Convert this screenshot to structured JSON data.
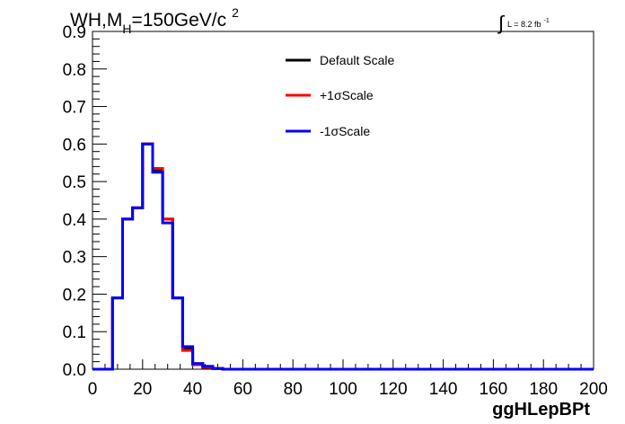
{
  "chart_data": {
    "type": "line",
    "title_parts": {
      "a": "WH,M",
      "sub": "H",
      "b": "=150GeV/c",
      "sup": "2"
    },
    "lumi": {
      "integral": "∫",
      "text": "L = 8.2 fb",
      "sup": "-1"
    },
    "xlabel": "ggHLepBPt",
    "ylabel": "",
    "xlim": [
      0,
      200
    ],
    "ylim": [
      0,
      0.9
    ],
    "x_ticks": [
      "0",
      "20",
      "40",
      "60",
      "80",
      "100",
      "120",
      "140",
      "160",
      "180",
      "200"
    ],
    "y_ticks": [
      "0.0",
      "0.1",
      "0.2",
      "0.3",
      "0.4",
      "0.5",
      "0.6",
      "0.7",
      "0.8",
      "0.9"
    ],
    "bin_edges": [
      0,
      4,
      8,
      12,
      16,
      20,
      24,
      28,
      32,
      36,
      40,
      44,
      48,
      52,
      200
    ],
    "series": [
      {
        "name": "Default Scale",
        "color": "#000000",
        "values": [
          0,
          0,
          0.19,
          0.4,
          0.43,
          0.6,
          0.53,
          0.4,
          0.19,
          0.055,
          0.015,
          0.005,
          0.002,
          0
        ]
      },
      {
        "name": "+1σScale",
        "color": "#ff0000",
        "values": [
          0,
          0,
          0.19,
          0.4,
          0.43,
          0.6,
          0.535,
          0.4,
          0.19,
          0.05,
          0.012,
          0.005,
          0.002,
          0
        ]
      },
      {
        "name": "-1σScale",
        "color": "#0000ff",
        "values": [
          0,
          0,
          0.19,
          0.4,
          0.43,
          0.6,
          0.525,
          0.39,
          0.19,
          0.06,
          0.015,
          0.008,
          0.002,
          0
        ]
      }
    ],
    "legend_position": "top-right",
    "grid": false
  }
}
